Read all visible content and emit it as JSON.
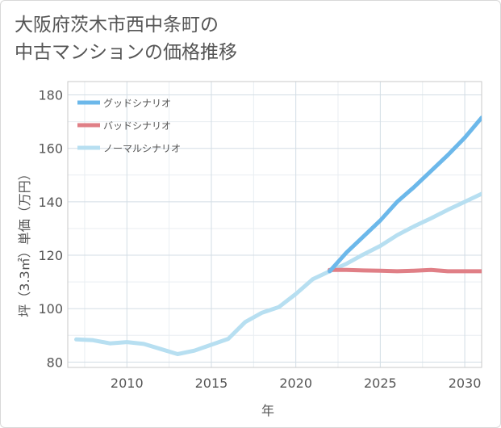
{
  "chart_data": {
    "type": "line",
    "title_lines": [
      "大阪府茨木市西中条町の",
      "中古マンションの価格推移"
    ],
    "xlabel": "年",
    "ylabel": "坪（3.3㎡）単価（万円）",
    "xlim": [
      2006.5,
      2031
    ],
    "ylim": [
      78,
      185
    ],
    "x_ticks": [
      2010,
      2015,
      2020,
      2025,
      2030
    ],
    "y_ticks": [
      80,
      100,
      120,
      140,
      160,
      180
    ],
    "grid": true,
    "legend_position": "top-left",
    "series": [
      {
        "name": "グッドシナリオ",
        "color": "#6cb8ea",
        "x": [
          2022,
          2023,
          2024,
          2025,
          2026,
          2027,
          2028,
          2029,
          2030,
          2031
        ],
        "values": [
          114,
          121,
          127,
          133,
          140,
          145.5,
          151.5,
          157.5,
          164,
          171.5
        ]
      },
      {
        "name": "バッドシナリオ",
        "color": "#e07f86",
        "x": [
          2022,
          2023,
          2024,
          2025,
          2026,
          2027,
          2028,
          2029,
          2030,
          2031
        ],
        "values": [
          114.5,
          114.5,
          114.3,
          114.2,
          114.0,
          114.2,
          114.5,
          114.0,
          114.0,
          114.0
        ]
      },
      {
        "name": "ノーマルシナリオ",
        "color": "#b7dff1",
        "x": [
          2007,
          2008,
          2009,
          2010,
          2011,
          2012,
          2013,
          2014,
          2015,
          2016,
          2017,
          2018,
          2019,
          2020,
          2021,
          2022,
          2023,
          2024,
          2025,
          2026,
          2027,
          2028,
          2029,
          2030,
          2031
        ],
        "values": [
          88.5,
          88.2,
          87.0,
          87.5,
          86.8,
          84.9,
          83.0,
          84.3,
          86.5,
          88.7,
          95.0,
          98.5,
          100.6,
          105.5,
          111.0,
          114.0,
          116.8,
          120.3,
          123.5,
          127.5,
          130.8,
          133.8,
          137.0,
          140.0,
          143.0
        ]
      }
    ]
  }
}
